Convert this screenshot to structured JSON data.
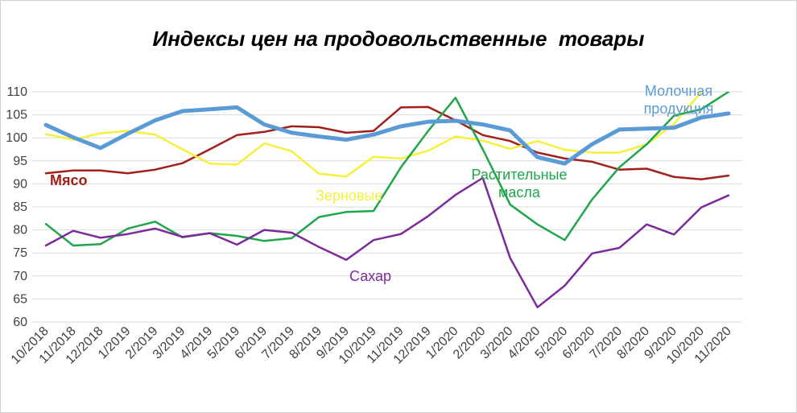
{
  "chart_data": {
    "type": "line",
    "title": "Индексы цен на продовольственные  товары",
    "xlabel": "",
    "ylabel": "",
    "ylim": [
      60,
      110
    ],
    "yticks": [
      60,
      65,
      70,
      75,
      80,
      85,
      90,
      95,
      100,
      105,
      110
    ],
    "grid": true,
    "legend": "labels-on-lines",
    "categories": [
      "10/2018",
      "11/2018",
      "12/2018",
      "1/2019",
      "2/2019",
      "3/2019",
      "4/2019",
      "5/2019",
      "6/2019",
      "7/2019",
      "8/2019",
      "9/2019",
      "10/2019",
      "11/2019",
      "12/2019",
      "1/2020",
      "2/2020",
      "3/2020",
      "4/2020",
      "5/2020",
      "6/2020",
      "7/2020",
      "8/2020",
      "9/2020",
      "10/2020",
      "11/2020"
    ],
    "series": [
      {
        "name": "Мясо",
        "color": "#a31f1a",
        "width": 2.5,
        "label_lines": [
          "Мясо"
        ],
        "values": [
          92.3,
          92.9,
          92.9,
          92.3,
          93.1,
          94.5,
          97.5,
          100.6,
          101.3,
          102.5,
          102.3,
          101.1,
          101.5,
          106.6,
          106.7,
          103.8,
          100.6,
          99.3,
          96.8,
          95.5,
          94.8,
          93.1,
          93.3,
          91.5,
          91.0,
          91.8
        ]
      },
      {
        "name": "Зерновые",
        "color": "#f5f03c",
        "width": 2.5,
        "label_lines": [
          "Зерновые"
        ],
        "values": [
          100.8,
          99.6,
          101.0,
          101.5,
          100.7,
          97.5,
          94.4,
          94.2,
          98.8,
          97.1,
          92.2,
          91.6,
          95.9,
          95.5,
          97.2,
          100.3,
          99.4,
          97.6,
          99.3,
          97.4,
          96.8,
          96.8,
          98.6,
          103.0,
          110.0,
          null
        ]
      },
      {
        "name": "Растительные масла",
        "color": "#1fa64b",
        "width": 2.5,
        "label_lines": [
          "Растительные",
          "масла"
        ],
        "values": [
          81.3,
          76.6,
          76.9,
          80.3,
          81.8,
          78.4,
          79.3,
          78.7,
          77.6,
          78.2,
          82.8,
          83.9,
          84.1,
          93.6,
          101.5,
          108.7,
          97.5,
          85.5,
          81.2,
          77.8,
          86.6,
          93.6,
          98.6,
          104.8,
          106.2,
          110.0
        ]
      },
      {
        "name": "Сахар",
        "color": "#7c2a9b",
        "width": 2.5,
        "label_lines": [
          "Сахар"
        ],
        "values": [
          76.6,
          79.8,
          78.3,
          79.1,
          80.3,
          78.5,
          79.3,
          76.8,
          80.0,
          79.4,
          76.3,
          73.5,
          77.8,
          79.1,
          83.0,
          87.6,
          91.3,
          73.9,
          63.2,
          67.9,
          74.9,
          76.1,
          81.2,
          79.0,
          84.9,
          87.5
        ]
      },
      {
        "name": "Молочная продукция",
        "color": "#5b9bd5",
        "width": 5,
        "label_lines": [
          "Молочная",
          "продукция"
        ],
        "values": [
          102.8,
          100.1,
          97.8,
          100.9,
          103.8,
          105.8,
          106.2,
          106.6,
          102.9,
          101.1,
          100.3,
          99.6,
          100.7,
          102.5,
          103.5,
          103.7,
          102.9,
          101.6,
          95.8,
          94.4,
          98.6,
          101.8,
          102.0,
          102.2,
          104.4,
          105.3
        ]
      }
    ]
  }
}
